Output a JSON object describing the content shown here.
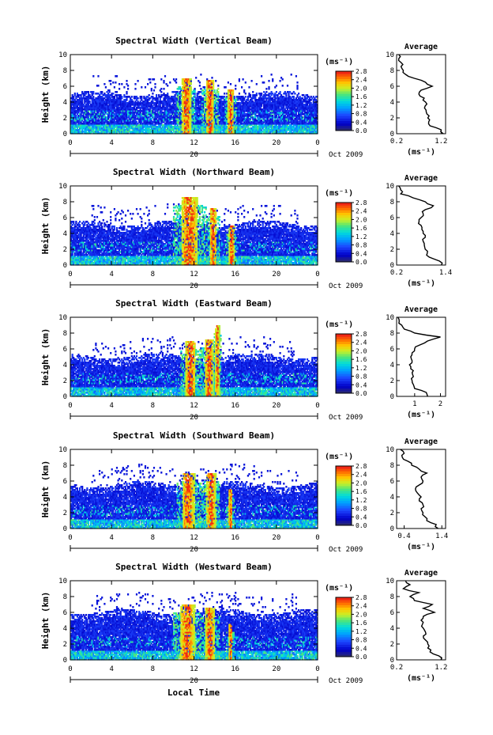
{
  "figure": {
    "x_axis_title": "Local Time",
    "date_label": "Oct 2009",
    "day_label": "20",
    "colorbar_unit": "(ms⁻¹)",
    "profile_unit": "(ms⁻¹)",
    "profile_title": "Average"
  },
  "chart_data": [
    {
      "type": "heatmap",
      "title": "Spectral Width (Vertical Beam)",
      "ylabel": "Height (km)",
      "xlabel": "Local Time",
      "x_ticks": [
        "0",
        "4",
        "8",
        "12",
        "16",
        "20",
        "0"
      ],
      "xlim": [
        0,
        24
      ],
      "y_ticks": [
        "0",
        "2",
        "4",
        "6",
        "8",
        "10"
      ],
      "ylim": [
        0,
        10
      ],
      "colorbar": {
        "ticks": [
          "0.0",
          "0.4",
          "0.8",
          "1.2",
          "1.6",
          "2.0",
          "2.4",
          "2.8"
        ],
        "range": [
          0,
          2.8
        ]
      },
      "cloud_top_km": 5.0,
      "convective_cells": [
        {
          "time": 11.2,
          "top": 7.0,
          "width": 0.9
        },
        {
          "time": 13.5,
          "top": 6.8,
          "width": 0.8
        },
        {
          "time": 15.5,
          "top": 5.5,
          "width": 0.6
        }
      ],
      "profile": {
        "title": "Average",
        "x_ticks": [
          "0.2",
          "1.2"
        ],
        "xlim": [
          0.2,
          1.3
        ],
        "heights": [
          0,
          0.5,
          1,
          1.5,
          2,
          2.5,
          3,
          3.5,
          4,
          4.5,
          5,
          5.5,
          6,
          6.5,
          7,
          7.5,
          8,
          8.5,
          9,
          9.5,
          10
        ],
        "values": [
          1.25,
          1.2,
          0.95,
          0.92,
          0.9,
          0.88,
          0.86,
          0.84,
          0.85,
          0.82,
          0.7,
          0.75,
          1.0,
          0.85,
          0.6,
          0.4,
          0.35,
          0.3,
          0.3,
          0.25,
          0.25
        ]
      }
    },
    {
      "type": "heatmap",
      "title": "Spectral Width (Northward Beam)",
      "ylabel": "Height (km)",
      "xlabel": "Local Time",
      "x_ticks": [
        "0",
        "4",
        "8",
        "12",
        "16",
        "20",
        "0"
      ],
      "xlim": [
        0,
        24
      ],
      "y_ticks": [
        "0",
        "2",
        "4",
        "6",
        "8",
        "10"
      ],
      "ylim": [
        0,
        10
      ],
      "colorbar": {
        "ticks": [
          "0.0",
          "0.4",
          "0.8",
          "1.2",
          "1.6",
          "2.0",
          "2.4",
          "2.8"
        ],
        "range": [
          0,
          2.8
        ]
      },
      "cloud_top_km": 5.2,
      "convective_cells": [
        {
          "time": 11.5,
          "top": 8.6,
          "width": 1.6
        },
        {
          "time": 13.8,
          "top": 7.2,
          "width": 0.7
        },
        {
          "time": 15.6,
          "top": 5.0,
          "width": 0.5
        }
      ],
      "profile": {
        "title": "Average",
        "x_ticks": [
          "0.2",
          "1.4"
        ],
        "xlim": [
          0.2,
          1.4
        ],
        "heights": [
          0,
          0.5,
          1,
          1.5,
          2,
          2.5,
          3,
          3.5,
          4,
          4.5,
          5,
          5.5,
          6,
          6.5,
          7,
          7.5,
          8,
          8.5,
          9,
          9.5,
          10
        ],
        "values": [
          1.3,
          1.25,
          1.0,
          0.95,
          0.9,
          0.88,
          0.85,
          0.9,
          0.85,
          0.82,
          0.8,
          0.75,
          0.8,
          0.85,
          0.9,
          1.1,
          0.9,
          0.6,
          0.3,
          0.3,
          0.25
        ]
      }
    },
    {
      "type": "heatmap",
      "title": "Spectral Width (Eastward Beam)",
      "ylabel": "Height (km)",
      "xlabel": "Local Time",
      "x_ticks": [
        "0",
        "4",
        "8",
        "12",
        "16",
        "20",
        "0"
      ],
      "xlim": [
        0,
        24
      ],
      "y_ticks": [
        "0",
        "2",
        "4",
        "6",
        "8",
        "10"
      ],
      "ylim": [
        0,
        10
      ],
      "colorbar": {
        "ticks": [
          "0.0",
          "0.4",
          "0.8",
          "1.2",
          "1.6",
          "2.0",
          "2.4",
          "2.8"
        ],
        "range": [
          0,
          2.8
        ]
      },
      "cloud_top_km": 5.0,
      "convective_cells": [
        {
          "time": 11.6,
          "top": 7.0,
          "width": 1.0
        },
        {
          "time": 13.4,
          "top": 7.2,
          "width": 0.8
        },
        {
          "time": 14.2,
          "top": 9.0,
          "width": 0.4
        }
      ],
      "profile": {
        "title": "Average",
        "x_ticks": [
          "1",
          "2"
        ],
        "xlim": [
          0.3,
          2.2
        ],
        "heights": [
          0,
          0.5,
          1,
          1.5,
          2,
          2.5,
          3,
          3.5,
          4,
          4.5,
          5,
          5.5,
          6,
          6.5,
          7,
          7.5,
          8,
          8.5,
          9,
          9.5,
          10
        ],
        "values": [
          1.5,
          1.45,
          1.0,
          0.95,
          0.9,
          0.95,
          0.9,
          0.85,
          0.8,
          0.9,
          0.85,
          0.9,
          1.0,
          1.2,
          1.5,
          2.0,
          1.0,
          0.6,
          0.5,
          0.4,
          0.35
        ]
      }
    },
    {
      "type": "heatmap",
      "title": "Spectral Width (Southward Beam)",
      "ylabel": "Height (km)",
      "xlabel": "Local Time",
      "x_ticks": [
        "0",
        "4",
        "8",
        "12",
        "16",
        "20",
        "0"
      ],
      "xlim": [
        0,
        24
      ],
      "y_ticks": [
        "0",
        "2",
        "4",
        "6",
        "8",
        "10"
      ],
      "ylim": [
        0,
        10
      ],
      "colorbar": {
        "ticks": [
          "0.0",
          "0.4",
          "0.8",
          "1.2",
          "1.6",
          "2.0",
          "2.4",
          "2.8"
        ],
        "range": [
          0,
          2.8
        ]
      },
      "cloud_top_km": 5.5,
      "convective_cells": [
        {
          "time": 11.4,
          "top": 7.0,
          "width": 1.2
        },
        {
          "time": 13.6,
          "top": 7.0,
          "width": 0.9
        },
        {
          "time": 15.5,
          "top": 5.0,
          "width": 0.4
        }
      ],
      "profile": {
        "title": "Average",
        "x_ticks": [
          "0.4",
          "1.4"
        ],
        "xlim": [
          0.2,
          1.5
        ],
        "heights": [
          0,
          0.5,
          1,
          1.5,
          2,
          2.5,
          3,
          3.5,
          4,
          4.5,
          5,
          5.5,
          6,
          6.5,
          7,
          7.5,
          8,
          8.5,
          9,
          9.5,
          10
        ],
        "values": [
          1.3,
          1.25,
          1.0,
          0.95,
          0.9,
          0.85,
          0.9,
          0.8,
          0.85,
          0.75,
          0.7,
          0.8,
          0.9,
          0.85,
          1.0,
          0.8,
          0.6,
          0.5,
          0.35,
          0.4,
          0.3
        ]
      }
    },
    {
      "type": "heatmap",
      "title": "Spectral Width (Westward Beam)",
      "ylabel": "Height (km)",
      "xlabel": "Local Time",
      "x_ticks": [
        "0",
        "4",
        "8",
        "12",
        "16",
        "20",
        "0"
      ],
      "xlim": [
        0,
        24
      ],
      "y_ticks": [
        "0",
        "2",
        "4",
        "6",
        "8",
        "10"
      ],
      "ylim": [
        0,
        10
      ],
      "colorbar": {
        "ticks": [
          "0.0",
          "0.4",
          "0.8",
          "1.2",
          "1.6",
          "2.0",
          "2.4",
          "2.8"
        ],
        "range": [
          0,
          2.8
        ]
      },
      "cloud_top_km": 6.0,
      "convective_cells": [
        {
          "time": 11.3,
          "top": 7.0,
          "width": 1.4
        },
        {
          "time": 13.5,
          "top": 6.5,
          "width": 0.9
        },
        {
          "time": 15.5,
          "top": 4.5,
          "width": 0.4
        }
      ],
      "profile": {
        "title": "Average",
        "x_ticks": [
          "0.2",
          "1.2"
        ],
        "xlim": [
          0.2,
          1.3
        ],
        "heights": [
          0,
          0.5,
          1,
          1.5,
          2,
          2.5,
          3,
          3.5,
          4,
          4.5,
          5,
          5.5,
          6,
          6.5,
          7,
          7.5,
          8,
          8.5,
          9,
          9.5,
          10
        ],
        "values": [
          1.2,
          1.15,
          0.95,
          0.9,
          0.9,
          0.85,
          0.8,
          0.85,
          0.8,
          0.78,
          0.75,
          0.8,
          1.05,
          0.8,
          1.0,
          0.6,
          0.5,
          0.7,
          0.35,
          0.5,
          0.4
        ]
      }
    }
  ]
}
